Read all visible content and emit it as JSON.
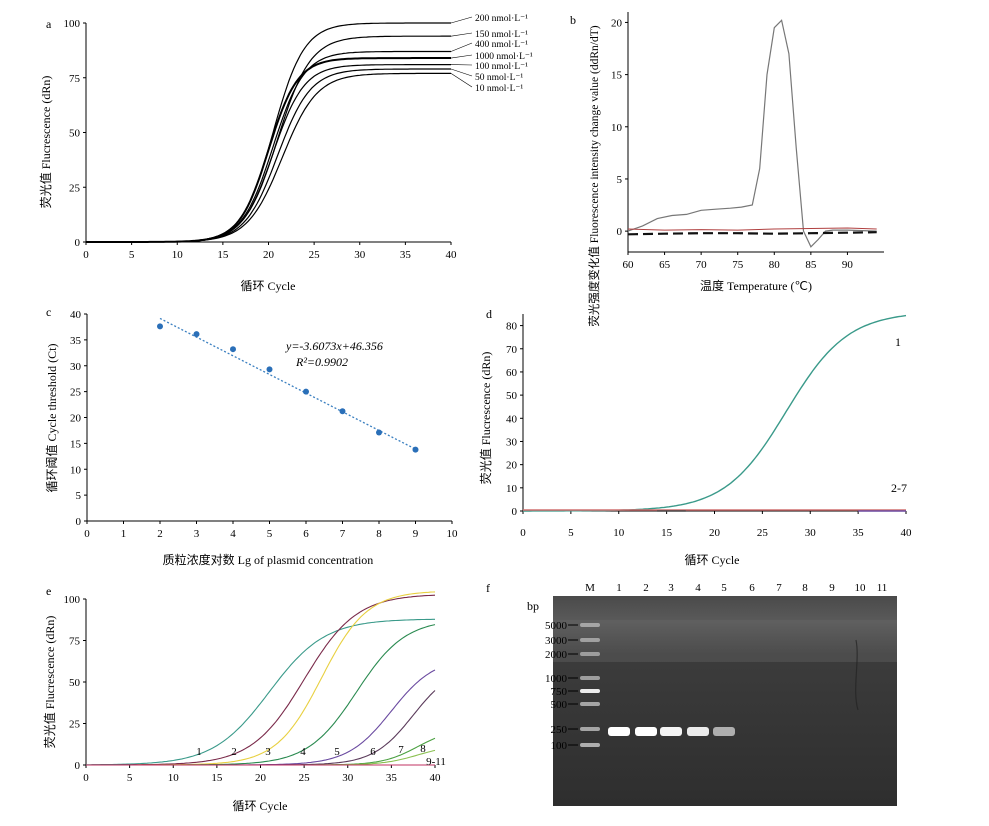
{
  "chart_data": [
    {
      "panel": "a",
      "type": "line",
      "xlabel": "循环 Cycle",
      "ylabel": "荧光值 Flucrescence (dRn)",
      "xlim": [
        0,
        40
      ],
      "ylim": [
        0,
        100
      ],
      "xticks": [
        "0",
        "5",
        "10",
        "15",
        "20",
        "25",
        "30",
        "35",
        "40"
      ],
      "yticks": [
        "0",
        "25",
        "50",
        "75",
        "100"
      ],
      "series": [
        {
          "name": "200 nmol·L⁻¹",
          "plateau": 100,
          "midpoint": 20.5,
          "slope": 1.7
        },
        {
          "name": "150 nmol·L⁻¹",
          "plateau": 94,
          "midpoint": 21.0,
          "slope": 1.8
        },
        {
          "name": "400 nmol·L⁻¹",
          "plateau": 87,
          "midpoint": 20.5,
          "slope": 1.7
        },
        {
          "name": "1000 nmol·L⁻¹",
          "plateau": 84,
          "midpoint": 20.0,
          "slope": 1.6
        },
        {
          "name": "100 nmol·L⁻¹",
          "plateau": 81,
          "midpoint": 20.5,
          "slope": 1.7
        },
        {
          "name": "50 nmol·L⁻¹",
          "plateau": 79,
          "midpoint": 21.0,
          "slope": 1.8
        },
        {
          "name": "10 nmol·L⁻¹",
          "plateau": 77,
          "midpoint": 21.5,
          "slope": 1.9
        }
      ]
    },
    {
      "panel": "b",
      "type": "line",
      "xlabel": "温度 Temperature (℃)",
      "ylabel": "荧光强度变化值 Fluorescence intensity change value (ddRn/dT)",
      "xlim": [
        60,
        95
      ],
      "ylim": [
        -2,
        21
      ],
      "xticks": [
        "60",
        "65",
        "70",
        "75",
        "80",
        "85",
        "90"
      ],
      "yticks": [
        "0",
        "5",
        "10",
        "15",
        "20"
      ],
      "series": [
        {
          "name": "",
          "x": [
            60,
            62,
            64,
            66,
            68,
            70,
            72,
            74,
            75.5,
            77,
            78,
            79,
            80,
            81,
            82,
            83,
            84,
            85,
            86,
            87,
            88,
            90,
            92,
            94
          ],
          "y": [
            0,
            0.5,
            1.2,
            1.5,
            1.6,
            2.0,
            2.1,
            2.2,
            2.3,
            2.5,
            6,
            15,
            19.5,
            20.2,
            17,
            8,
            0,
            -1.5,
            -0.8,
            0,
            0.1,
            0.1,
            0.05,
            0
          ]
        },
        {
          "name": "",
          "x": [
            60,
            65,
            70,
            75,
            80,
            85,
            90,
            94
          ],
          "y": [
            -0.3,
            -0.25,
            -0.2,
            -0.2,
            -0.25,
            -0.2,
            -0.15,
            -0.1
          ]
        },
        {
          "name": "",
          "x": [
            60,
            65,
            70,
            75,
            80,
            85,
            90,
            94
          ],
          "y": [
            0.2,
            0.1,
            0.15,
            0.1,
            0.2,
            0.25,
            0.3,
            0.2
          ]
        }
      ]
    },
    {
      "panel": "c",
      "type": "scatter",
      "xlabel": "质粒浓度对数 Lg of plasmid concentration",
      "ylabel": "循环阈值 Cycle threshold (Ct)",
      "xlim": [
        0,
        10
      ],
      "ylim": [
        0,
        40
      ],
      "xticks": [
        "0",
        "1",
        "2",
        "3",
        "4",
        "5",
        "6",
        "7",
        "8",
        "9",
        "10"
      ],
      "yticks": [
        "0",
        "5",
        "10",
        "15",
        "20",
        "25",
        "30",
        "35",
        "40"
      ],
      "x": [
        2,
        3,
        4,
        5,
        6,
        7,
        8,
        9
      ],
      "y": [
        37.6,
        36.1,
        33.2,
        29.3,
        25.0,
        21.2,
        17.1,
        13.8
      ],
      "trendline": {
        "slope": -3.6073,
        "intercept": 46.356
      },
      "annotations": [
        "y=-3.6073x+46.356",
        "R²=0.9902"
      ]
    },
    {
      "panel": "d",
      "type": "line",
      "xlabel": "循环 Cycle",
      "ylabel": "荧光值 Flucrescence (dRn)",
      "xlim": [
        0,
        40
      ],
      "ylim": [
        0,
        85
      ],
      "xticks": [
        "0",
        "5",
        "10",
        "15",
        "20",
        "25",
        "30",
        "35",
        "40"
      ],
      "yticks": [
        "0",
        "10",
        "20",
        "30",
        "40",
        "50",
        "60",
        "70",
        "80"
      ],
      "series": [
        {
          "name": "1",
          "plateau": 86,
          "midpoint": 27.5,
          "slope": 3.2
        },
        {
          "name": "2-7",
          "plateau": 0,
          "midpoint": 20,
          "slope": 3
        }
      ]
    },
    {
      "panel": "e",
      "type": "line",
      "xlabel": "循环 Cycle",
      "ylabel": "荧光值 Flucrescence (dRn)",
      "xlim": [
        0,
        40
      ],
      "ylim": [
        0,
        100
      ],
      "xticks": [
        "0",
        "5",
        "10",
        "15",
        "20",
        "25",
        "30",
        "35",
        "40"
      ],
      "yticks": [
        "0",
        "25",
        "50",
        "75",
        "100"
      ],
      "series": [
        {
          "name": "1",
          "plateau": 88,
          "midpoint": 21,
          "slope": 3.2
        },
        {
          "name": "2",
          "plateau": 103,
          "midpoint": 25,
          "slope": 3.0
        },
        {
          "name": "3",
          "plateau": 105,
          "midpoint": 27,
          "slope": 2.6
        },
        {
          "name": "4",
          "plateau": 88,
          "midpoint": 31,
          "slope": 2.8
        },
        {
          "name": "5",
          "plateau": 65,
          "midpoint": 35,
          "slope": 2.5
        },
        {
          "name": "6",
          "plateau": 60,
          "midpoint": 37.5,
          "slope": 2.3
        },
        {
          "name": "7",
          "plateau": 22,
          "midpoint": 38,
          "slope": 2.0
        },
        {
          "name": "8",
          "plateau": 12,
          "midpoint": 38,
          "slope": 2.0
        },
        {
          "name": "9-11",
          "plateau": 0,
          "midpoint": 30,
          "slope": 3
        }
      ],
      "colors": [
        "#3a9a8a",
        "#7a2a4a",
        "#e8d040",
        "#2a8a50",
        "#6a4aa0",
        "#5a3a5a",
        "#4aa040",
        "#8ac050",
        "#c03060"
      ]
    },
    {
      "panel": "f",
      "type": "other",
      "ylabel": "bp",
      "lanes": [
        "M",
        "1",
        "2",
        "3",
        "4",
        "5",
        "6",
        "7",
        "8",
        "9",
        "10",
        "11"
      ],
      "marker_sizes": [
        "5000",
        "3000",
        "2000",
        "1000",
        "750",
        "500",
        "250",
        "100"
      ]
    }
  ],
  "panel_letters": {
    "a": "a",
    "b": "b",
    "c": "c",
    "d": "d",
    "e": "e",
    "f": "f"
  }
}
